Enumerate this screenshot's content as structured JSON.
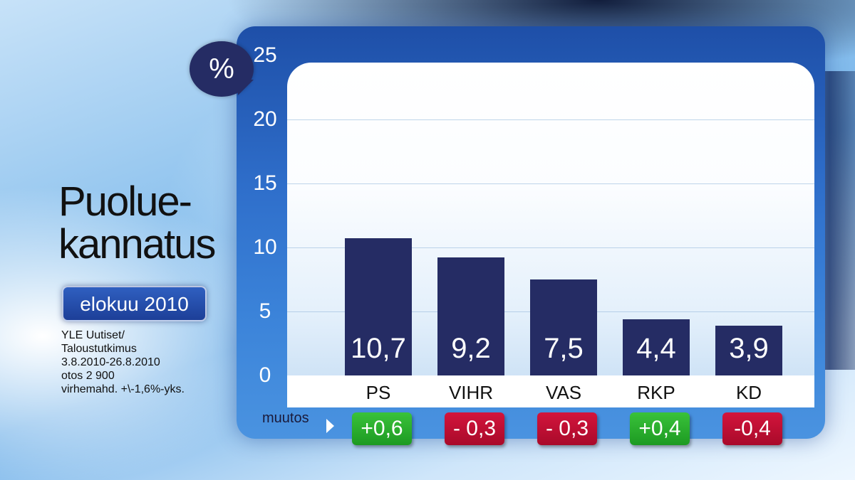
{
  "title_lines": [
    "Puolue-",
    "kannatus"
  ],
  "date_badge": "elokuu 2010",
  "source_lines": [
    "YLE Uutiset/",
    "Taloustutkimus",
    "3.8.2010-26.8.2010",
    "otos 2 900",
    "virhemahd. +\\-1,6%-yks."
  ],
  "unit_label": "%",
  "change_label": "muutos",
  "colors": {
    "bar": "#252c64",
    "positive": "#1d9a22",
    "negative": "#a90a2a"
  },
  "chart_data": {
    "type": "bar",
    "title": "Puolue-kannatus",
    "ylabel": "%",
    "ylim": [
      0,
      25
    ],
    "yticks": [
      "0",
      "5",
      "10",
      "15",
      "20",
      "25"
    ],
    "grid": true,
    "categories": [
      "PS",
      "VIHR",
      "VAS",
      "RKP",
      "KD"
    ],
    "values": [
      10.7,
      9.2,
      7.5,
      4.4,
      3.9
    ],
    "value_labels": [
      "10,7",
      "9,2",
      "7,5",
      "4,4",
      "3,9"
    ],
    "changes": [
      0.6,
      -0.3,
      -0.3,
      0.4,
      -0.4
    ],
    "change_labels": [
      "+0,6",
      "- 0,3",
      "- 0,3",
      "+0,4",
      "-0,4"
    ]
  }
}
